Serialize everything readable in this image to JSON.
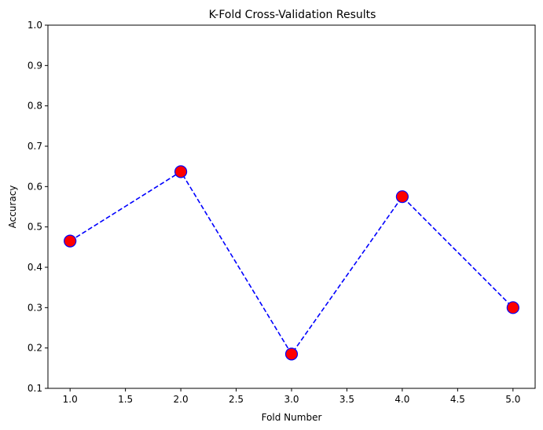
{
  "chart_data": {
    "type": "line",
    "title": "K-Fold Cross-Validation Results",
    "xlabel": "Fold Number",
    "ylabel": "Accuracy",
    "x": [
      1.0,
      2.0,
      3.0,
      4.0,
      5.0
    ],
    "series": [
      {
        "values": [
          0.465,
          0.637,
          0.185,
          0.575,
          0.3
        ]
      }
    ],
    "xlim": [
      0.8,
      5.2
    ],
    "ylim": [
      0.1,
      1.0
    ],
    "xticks": [
      "1.0",
      "1.5",
      "2.0",
      "2.5",
      "3.0",
      "3.5",
      "4.0",
      "4.5",
      "5.0"
    ],
    "yticks": [
      "0.1",
      "0.2",
      "0.3",
      "0.4",
      "0.5",
      "0.6",
      "0.7",
      "0.8",
      "0.9",
      "1.0"
    ],
    "line_style": "dashed",
    "line_color": "#0000ff",
    "marker": "circle",
    "marker_face_color": "#ff0000",
    "marker_edge_color": "#0000ff",
    "grid": false,
    "legend": false
  }
}
